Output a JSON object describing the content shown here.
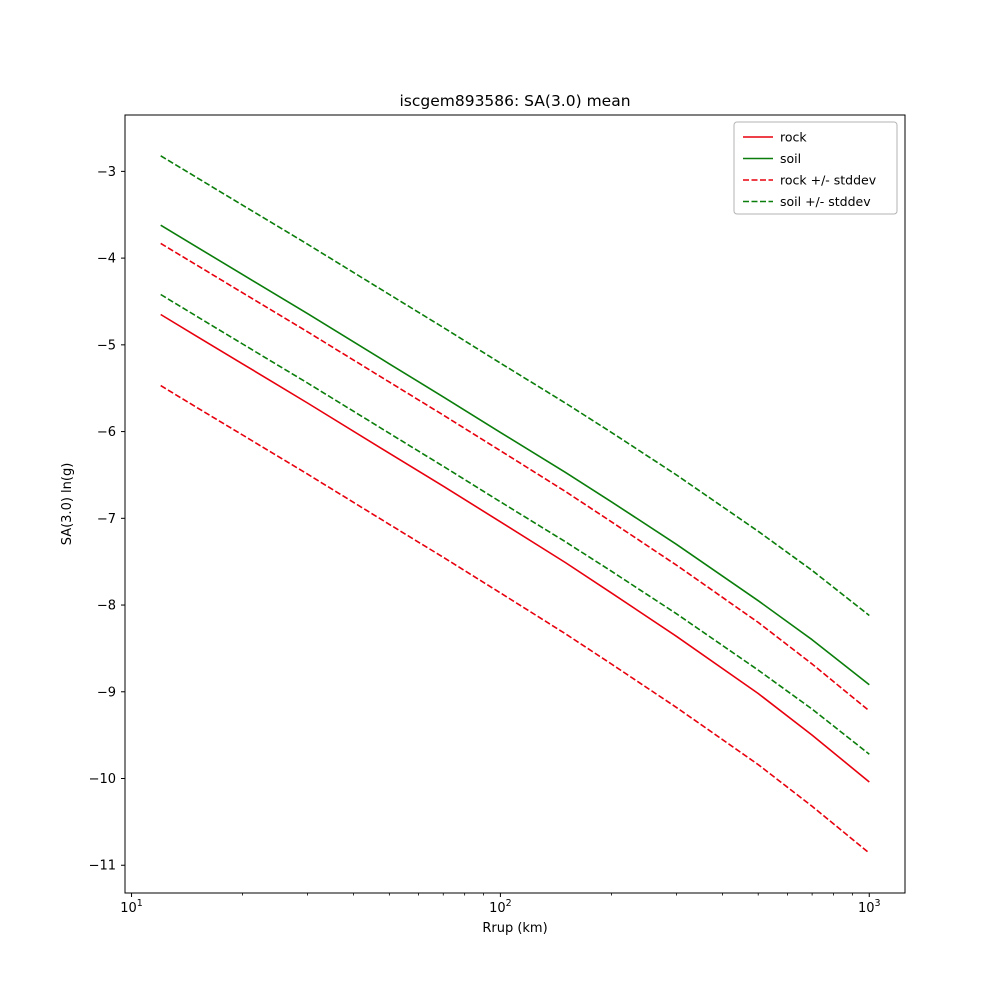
{
  "chart_data": {
    "type": "line",
    "title": "iscgem893586: SA(3.0) mean",
    "xlabel": "Rrup (km)",
    "ylabel": "SA(3.0) ln(g)",
    "xscale": "log",
    "xlim": [
      9.6,
      1250
    ],
    "ylim": [
      -11.32,
      -2.35
    ],
    "grid": false,
    "legend_position": "upper right",
    "x": [
      12,
      15,
      20,
      30,
      50,
      70,
      100,
      150,
      200,
      300,
      500,
      700,
      1000
    ],
    "series": [
      {
        "name": "rock",
        "color": "#e8000d",
        "style": "solid",
        "values": [
          -4.65,
          -4.9,
          -5.22,
          -5.67,
          -6.25,
          -6.63,
          -7.04,
          -7.51,
          -7.86,
          -8.36,
          -9.02,
          -9.5,
          -10.04
        ]
      },
      {
        "name": "soil",
        "color": "#0a7d0a",
        "style": "solid",
        "values": [
          -3.62,
          -3.87,
          -4.19,
          -4.64,
          -5.22,
          -5.6,
          -6.01,
          -6.47,
          -6.81,
          -7.3,
          -7.95,
          -8.4,
          -8.92
        ]
      },
      {
        "name": "rock + stddev",
        "color": "#e8000d",
        "style": "dashed",
        "values": [
          -3.83,
          -4.08,
          -4.4,
          -4.85,
          -5.43,
          -5.81,
          -6.22,
          -6.69,
          -7.04,
          -7.54,
          -8.2,
          -8.68,
          -9.22
        ]
      },
      {
        "name": "rock - stddev",
        "color": "#e8000d",
        "style": "dashed",
        "values": [
          -5.47,
          -5.72,
          -6.04,
          -6.49,
          -7.07,
          -7.45,
          -7.86,
          -8.33,
          -8.68,
          -9.18,
          -9.84,
          -10.32,
          -10.86
        ]
      },
      {
        "name": "soil + stddev",
        "color": "#0a7d0a",
        "style": "dashed",
        "values": [
          -2.82,
          -3.07,
          -3.39,
          -3.84,
          -4.42,
          -4.8,
          -5.21,
          -5.67,
          -6.01,
          -6.5,
          -7.15,
          -7.6,
          -8.12
        ]
      },
      {
        "name": "soil - stddev",
        "color": "#0a7d0a",
        "style": "dashed",
        "values": [
          -4.42,
          -4.67,
          -4.99,
          -5.44,
          -6.02,
          -6.4,
          -6.81,
          -7.27,
          -7.61,
          -8.1,
          -8.75,
          -9.2,
          -9.72
        ]
      }
    ],
    "legend": [
      {
        "label": "rock",
        "color": "#e8000d",
        "style": "solid"
      },
      {
        "label": "soil",
        "color": "#0a7d0a",
        "style": "solid"
      },
      {
        "label": "rock +/- stddev",
        "color": "#e8000d",
        "style": "dashed"
      },
      {
        "label": "soil +/- stddev",
        "color": "#0a7d0a",
        "style": "dashed"
      }
    ],
    "yticks": [
      {
        "v": -3,
        "label": "−3"
      },
      {
        "v": -4,
        "label": "−4"
      },
      {
        "v": -5,
        "label": "−5"
      },
      {
        "v": -6,
        "label": "−6"
      },
      {
        "v": -7,
        "label": "−7"
      },
      {
        "v": -8,
        "label": "−8"
      },
      {
        "v": -9,
        "label": "−9"
      },
      {
        "v": -10,
        "label": "−10"
      },
      {
        "v": -11,
        "label": "−11"
      }
    ],
    "xticks": [
      {
        "v": 10,
        "base": "10",
        "exp": "1"
      },
      {
        "v": 100,
        "base": "10",
        "exp": "2"
      },
      {
        "v": 1000,
        "base": "10",
        "exp": "3"
      }
    ]
  }
}
